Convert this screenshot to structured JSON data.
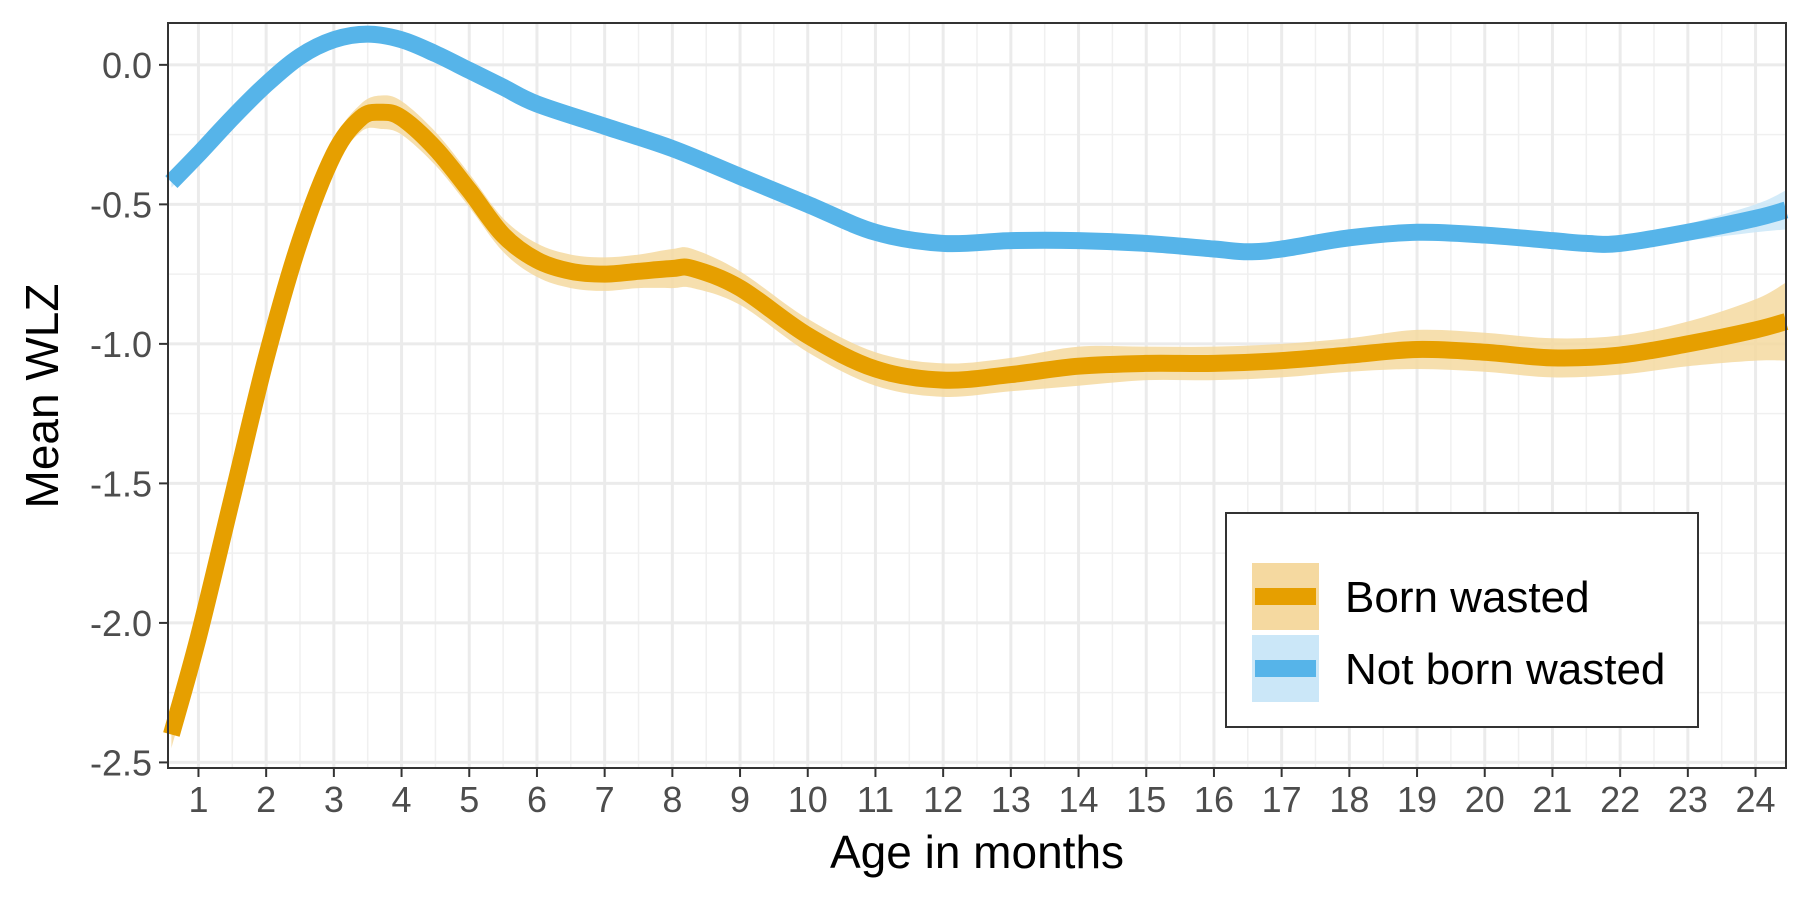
{
  "chart_data": {
    "type": "line",
    "title": "",
    "xlabel": "Age in months",
    "ylabel": "Mean WLZ",
    "xlim": [
      0.55,
      24.45
    ],
    "ylim": [
      -2.52,
      0.15
    ],
    "x_ticks": [
      1,
      2,
      3,
      4,
      5,
      6,
      7,
      8,
      9,
      10,
      11,
      12,
      13,
      14,
      15,
      16,
      17,
      18,
      19,
      20,
      21,
      22,
      23,
      24
    ],
    "x_tick_labels": [
      "1",
      "2",
      "3",
      "4",
      "5",
      "6",
      "7",
      "8",
      "9",
      "10",
      "11",
      "12",
      "13",
      "14",
      "15",
      "16",
      "17",
      "18",
      "19",
      "20",
      "21",
      "22",
      "23",
      "24"
    ],
    "y_ticks": [
      0.0,
      -0.5,
      -1.0,
      -1.5,
      -2.0,
      -2.5
    ],
    "y_tick_labels": [
      "0.0",
      "-0.5",
      "-1.0",
      "-1.5",
      "-2.0",
      "-2.5"
    ],
    "grid": true,
    "legend_position": "bottom-right",
    "series": [
      {
        "name": "Born wasted",
        "color": "#E69F00",
        "band_color": "#F5D9A0",
        "x": [
          0.6,
          1.0,
          1.5,
          2.0,
          2.5,
          3.0,
          3.4,
          3.7,
          4.0,
          4.5,
          5.0,
          5.5,
          6.0,
          6.5,
          7.0,
          7.5,
          8.0,
          8.3,
          9.0,
          10.0,
          11.0,
          12.0,
          13.0,
          14.0,
          15.0,
          16.0,
          17.0,
          18.0,
          19.0,
          20.0,
          21.0,
          22.0,
          23.0,
          24.0,
          24.45
        ],
        "y": [
          -2.4,
          -2.05,
          -1.55,
          -1.05,
          -0.63,
          -0.32,
          -0.19,
          -0.17,
          -0.19,
          -0.3,
          -0.45,
          -0.61,
          -0.7,
          -0.74,
          -0.75,
          -0.74,
          -0.73,
          -0.73,
          -0.8,
          -0.97,
          -1.09,
          -1.13,
          -1.11,
          -1.08,
          -1.07,
          -1.07,
          -1.06,
          -1.04,
          -1.02,
          -1.03,
          -1.05,
          -1.04,
          -1.0,
          -0.95,
          -0.92
        ],
        "lower": [
          -2.45,
          -2.1,
          -1.6,
          -1.1,
          -0.68,
          -0.37,
          -0.24,
          -0.23,
          -0.25,
          -0.36,
          -0.51,
          -0.67,
          -0.76,
          -0.8,
          -0.81,
          -0.8,
          -0.8,
          -0.8,
          -0.86,
          -1.03,
          -1.15,
          -1.19,
          -1.17,
          -1.15,
          -1.13,
          -1.13,
          -1.12,
          -1.1,
          -1.09,
          -1.1,
          -1.12,
          -1.11,
          -1.08,
          -1.06,
          -1.06
        ],
        "upper": [
          -2.35,
          -2.0,
          -1.5,
          -1.0,
          -0.58,
          -0.27,
          -0.14,
          -0.11,
          -0.13,
          -0.24,
          -0.39,
          -0.55,
          -0.64,
          -0.68,
          -0.69,
          -0.68,
          -0.66,
          -0.66,
          -0.74,
          -0.91,
          -1.03,
          -1.07,
          -1.05,
          -1.01,
          -1.01,
          -1.01,
          -1.0,
          -0.98,
          -0.95,
          -0.96,
          -0.98,
          -0.97,
          -0.92,
          -0.84,
          -0.78
        ]
      },
      {
        "name": "Not born wasted",
        "color": "#56B4E9",
        "band_color": "#CBE7F8",
        "x": [
          0.6,
          1.0,
          1.5,
          2.0,
          2.5,
          3.0,
          3.5,
          4.0,
          4.5,
          5.0,
          5.5,
          6.0,
          7.0,
          8.0,
          9.0,
          10.0,
          11.0,
          12.0,
          13.0,
          14.0,
          15.0,
          16.0,
          16.5,
          17.0,
          18.0,
          19.0,
          20.0,
          21.0,
          21.5,
          22.0,
          23.0,
          24.0,
          24.45
        ],
        "y": [
          -0.42,
          -0.32,
          -0.19,
          -0.07,
          0.03,
          0.09,
          0.11,
          0.09,
          0.04,
          -0.02,
          -0.08,
          -0.14,
          -0.22,
          -0.3,
          -0.4,
          -0.5,
          -0.6,
          -0.64,
          -0.63,
          -0.63,
          -0.64,
          -0.66,
          -0.67,
          -0.66,
          -0.62,
          -0.6,
          -0.61,
          -0.63,
          -0.64,
          -0.64,
          -0.6,
          -0.55,
          -0.52
        ],
        "lower": [
          -0.44,
          -0.34,
          -0.21,
          -0.09,
          0.01,
          0.07,
          0.09,
          0.07,
          0.02,
          -0.04,
          -0.1,
          -0.16,
          -0.24,
          -0.32,
          -0.42,
          -0.52,
          -0.62,
          -0.66,
          -0.65,
          -0.65,
          -0.66,
          -0.68,
          -0.69,
          -0.68,
          -0.64,
          -0.62,
          -0.63,
          -0.65,
          -0.66,
          -0.66,
          -0.63,
          -0.6,
          -0.59
        ],
        "upper": [
          -0.4,
          -0.3,
          -0.17,
          -0.05,
          0.05,
          0.11,
          0.13,
          0.11,
          0.06,
          0.0,
          -0.06,
          -0.12,
          -0.2,
          -0.28,
          -0.38,
          -0.48,
          -0.58,
          -0.62,
          -0.61,
          -0.61,
          -0.62,
          -0.64,
          -0.65,
          -0.64,
          -0.6,
          -0.58,
          -0.59,
          -0.61,
          -0.62,
          -0.62,
          -0.57,
          -0.5,
          -0.45
        ]
      }
    ]
  }
}
